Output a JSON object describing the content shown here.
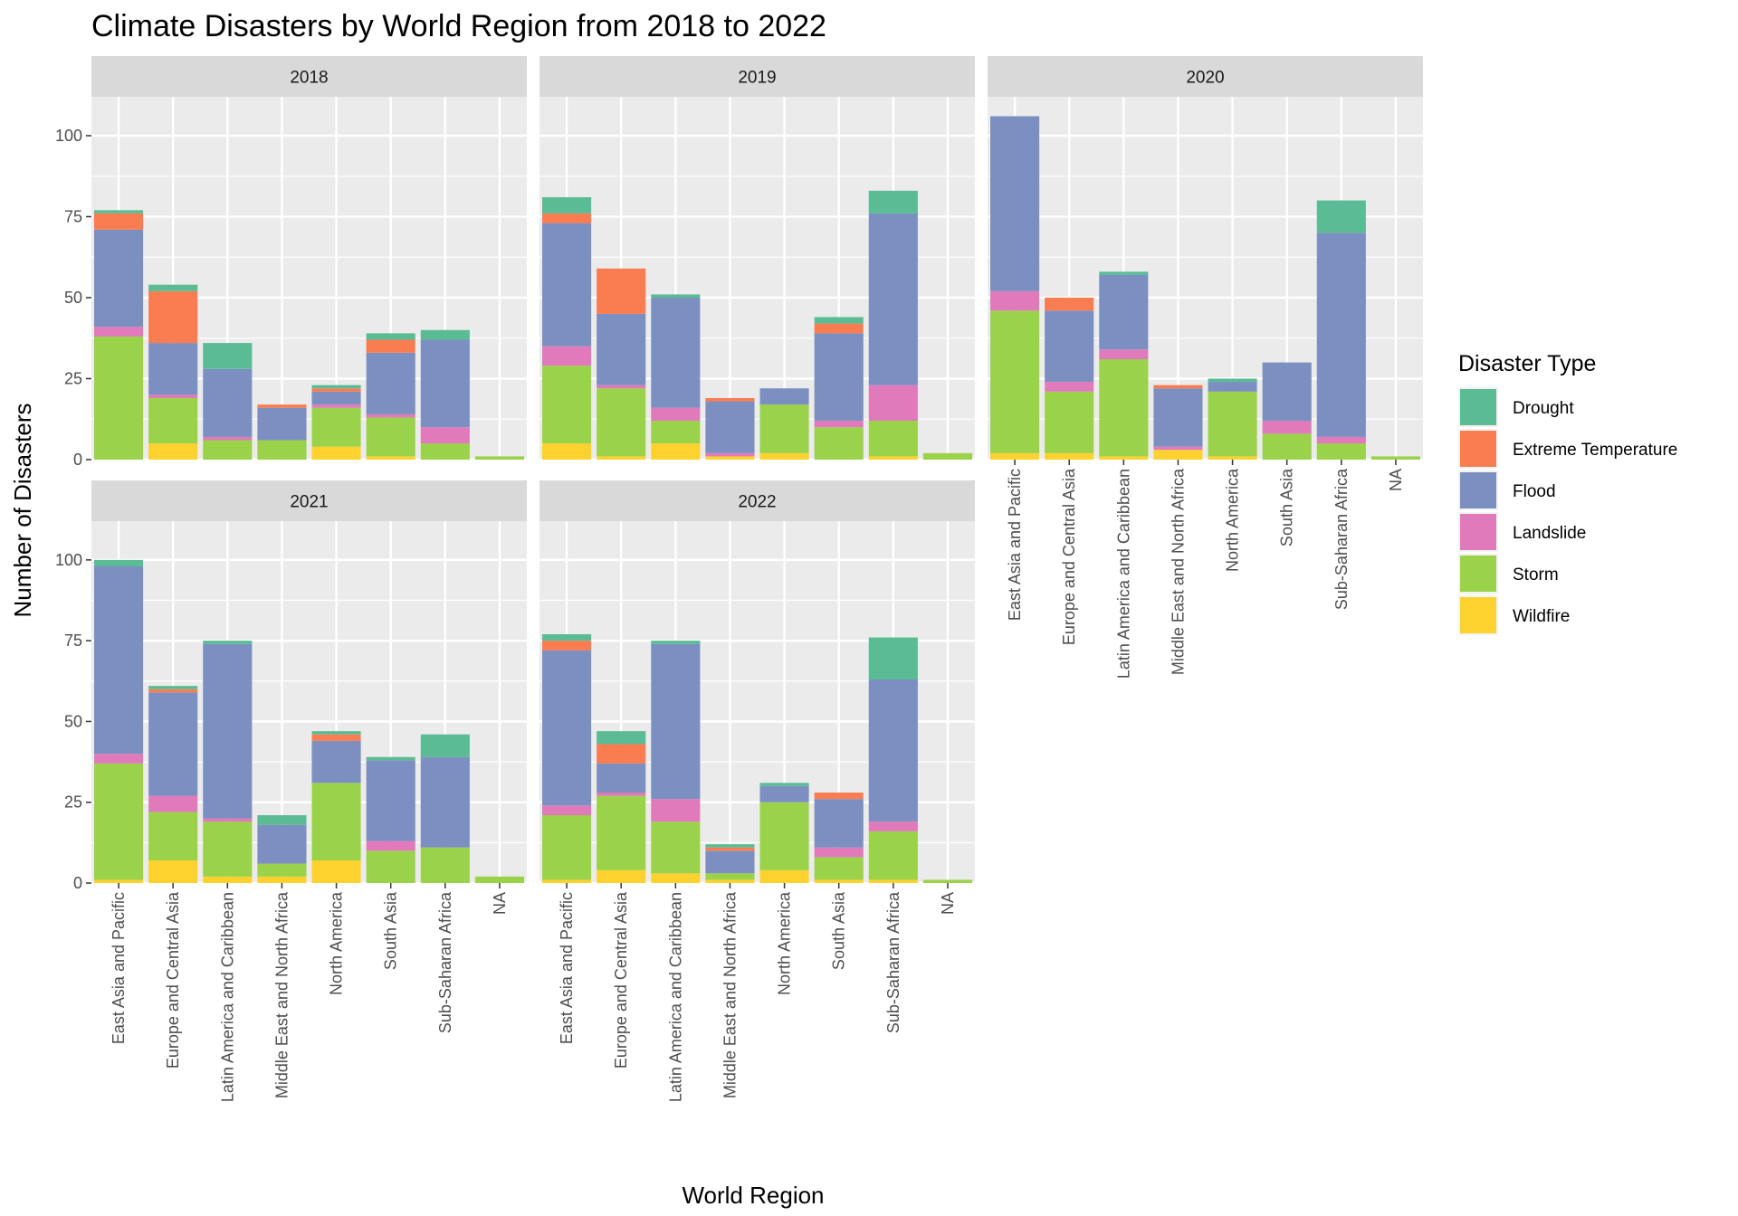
{
  "chart_data": {
    "type": "bar",
    "stacked": true,
    "title": "Climate Disasters by World Region from 2018 to 2022",
    "xlabel": "World Region",
    "ylabel": "Number of Disasters",
    "ylim": [
      0,
      112
    ],
    "yticks": [
      0,
      25,
      50,
      75,
      100
    ],
    "grid": true,
    "legend_title": "Disaster Type",
    "legend_position": "right",
    "categories": [
      "East Asia and Pacific",
      "Europe and Central Asia",
      "Latin America and Caribbean",
      "Middle East and North Africa",
      "North America",
      "South Asia",
      "Sub-Saharan Africa",
      "NA"
    ],
    "series_names": [
      "Wildfire",
      "Storm",
      "Landslide",
      "Flood",
      "Extreme Temperature",
      "Drought"
    ],
    "legend_order": [
      "Drought",
      "Extreme Temperature",
      "Flood",
      "Landslide",
      "Storm",
      "Wildfire"
    ],
    "colors": {
      "Drought": "#5abb95",
      "Extreme Temperature": "#f97d51",
      "Flood": "#7c8fc1",
      "Landslide": "#e07abb",
      "Storm": "#9ad24a",
      "Wildfire": "#fdd22f"
    },
    "panels": [
      {
        "year": "2018",
        "values": {
          "Wildfire": [
            0,
            5,
            0,
            0,
            4,
            1,
            0,
            0
          ],
          "Storm": [
            38,
            14,
            6,
            6,
            12,
            12,
            5,
            1
          ],
          "Landslide": [
            3,
            1,
            1,
            0,
            1,
            1,
            5,
            0
          ],
          "Flood": [
            30,
            16,
            21,
            10,
            4,
            19,
            27,
            0
          ],
          "Extreme Temperature": [
            5,
            16,
            0,
            1,
            1,
            4,
            0,
            0
          ],
          "Drought": [
            1,
            2,
            8,
            0,
            1,
            2,
            3,
            0
          ]
        }
      },
      {
        "year": "2019",
        "values": {
          "Wildfire": [
            5,
            1,
            5,
            1,
            2,
            0,
            1,
            0
          ],
          "Storm": [
            24,
            21,
            7,
            0,
            15,
            10,
            11,
            2
          ],
          "Landslide": [
            6,
            1,
            4,
            1,
            0,
            2,
            11,
            0
          ],
          "Flood": [
            38,
            22,
            34,
            16,
            5,
            27,
            53,
            0
          ],
          "Extreme Temperature": [
            3,
            14,
            0,
            1,
            0,
            3,
            0,
            0
          ],
          "Drought": [
            5,
            0,
            1,
            0,
            0,
            2,
            7,
            0
          ]
        }
      },
      {
        "year": "2020",
        "values": {
          "Wildfire": [
            2,
            2,
            1,
            3,
            1,
            0,
            0,
            0
          ],
          "Storm": [
            44,
            19,
            30,
            0,
            20,
            8,
            5,
            1
          ],
          "Landslide": [
            6,
            3,
            3,
            1,
            0,
            4,
            2,
            0
          ],
          "Flood": [
            54,
            22,
            23,
            18,
            3,
            18,
            63,
            0
          ],
          "Extreme Temperature": [
            0,
            4,
            0,
            1,
            0,
            0,
            0,
            0
          ],
          "Drought": [
            0,
            0,
            1,
            0,
            1,
            0,
            10,
            0
          ]
        }
      },
      {
        "year": "2021",
        "values": {
          "Wildfire": [
            1,
            7,
            2,
            2,
            7,
            0,
            0,
            0
          ],
          "Storm": [
            36,
            15,
            17,
            4,
            24,
            10,
            11,
            2
          ],
          "Landslide": [
            3,
            5,
            1,
            0,
            0,
            3,
            0,
            0
          ],
          "Flood": [
            58,
            32,
            54,
            12,
            13,
            25,
            28,
            0
          ],
          "Extreme Temperature": [
            0,
            1,
            0,
            0,
            2,
            0,
            0,
            0
          ],
          "Drought": [
            2,
            1,
            1,
            3,
            1,
            1,
            7,
            0
          ]
        }
      },
      {
        "year": "2022",
        "values": {
          "Wildfire": [
            1,
            4,
            3,
            1,
            4,
            1,
            1,
            0
          ],
          "Storm": [
            20,
            23,
            16,
            2,
            21,
            7,
            15,
            1
          ],
          "Landslide": [
            3,
            1,
            7,
            0,
            0,
            3,
            3,
            0
          ],
          "Flood": [
            48,
            9,
            48,
            7,
            5,
            15,
            44,
            0
          ],
          "Extreme Temperature": [
            3,
            6,
            0,
            1,
            0,
            2,
            0,
            0
          ],
          "Drought": [
            2,
            4,
            1,
            1,
            1,
            0,
            13,
            0
          ]
        }
      }
    ]
  }
}
